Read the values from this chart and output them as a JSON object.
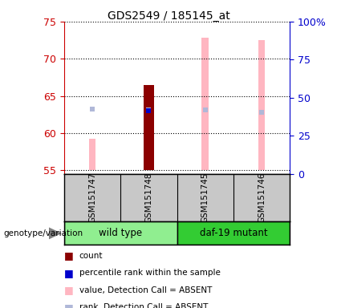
{
  "title": "GDS2549 / 185145_at",
  "samples": [
    "GSM151747",
    "GSM151748",
    "GSM151745",
    "GSM151746"
  ],
  "ylim_left": [
    54.5,
    75
  ],
  "ylim_right": [
    0,
    100
  ],
  "yticks_left": [
    55,
    60,
    65,
    70,
    75
  ],
  "yticks_right": [
    0,
    25,
    50,
    75,
    100
  ],
  "bar_bottom": 55,
  "value_absent": [
    59.2,
    66.5,
    72.8,
    72.5
  ],
  "rank_absent": [
    63.2,
    63.1,
    63.1,
    62.8
  ],
  "count_value": [
    null,
    66.5,
    null,
    null
  ],
  "count_bottom": [
    null,
    55.0,
    null,
    null
  ],
  "percentile_rank": [
    null,
    63.0,
    null,
    null
  ],
  "thin_bar_width": 0.12,
  "count_bar_width": 0.18,
  "color_count": "#8B0000",
  "color_percentile": "#0000CC",
  "color_value_absent": "#FFB6C1",
  "color_rank_absent": "#B0B8D8",
  "left_tick_color": "#CC0000",
  "right_tick_color": "#0000CC",
  "wt_color": "#90EE90",
  "daf_color": "#33CC33",
  "sample_bg": "#C8C8C8",
  "grid_color": "#000000",
  "plot_bg": "#FFFFFF",
  "legend_items": [
    {
      "color": "#8B0000",
      "label": "count"
    },
    {
      "color": "#0000CC",
      "label": "percentile rank within the sample"
    },
    {
      "color": "#FFB6C1",
      "label": "value, Detection Call = ABSENT"
    },
    {
      "color": "#B0B8D8",
      "label": "rank, Detection Call = ABSENT"
    }
  ]
}
